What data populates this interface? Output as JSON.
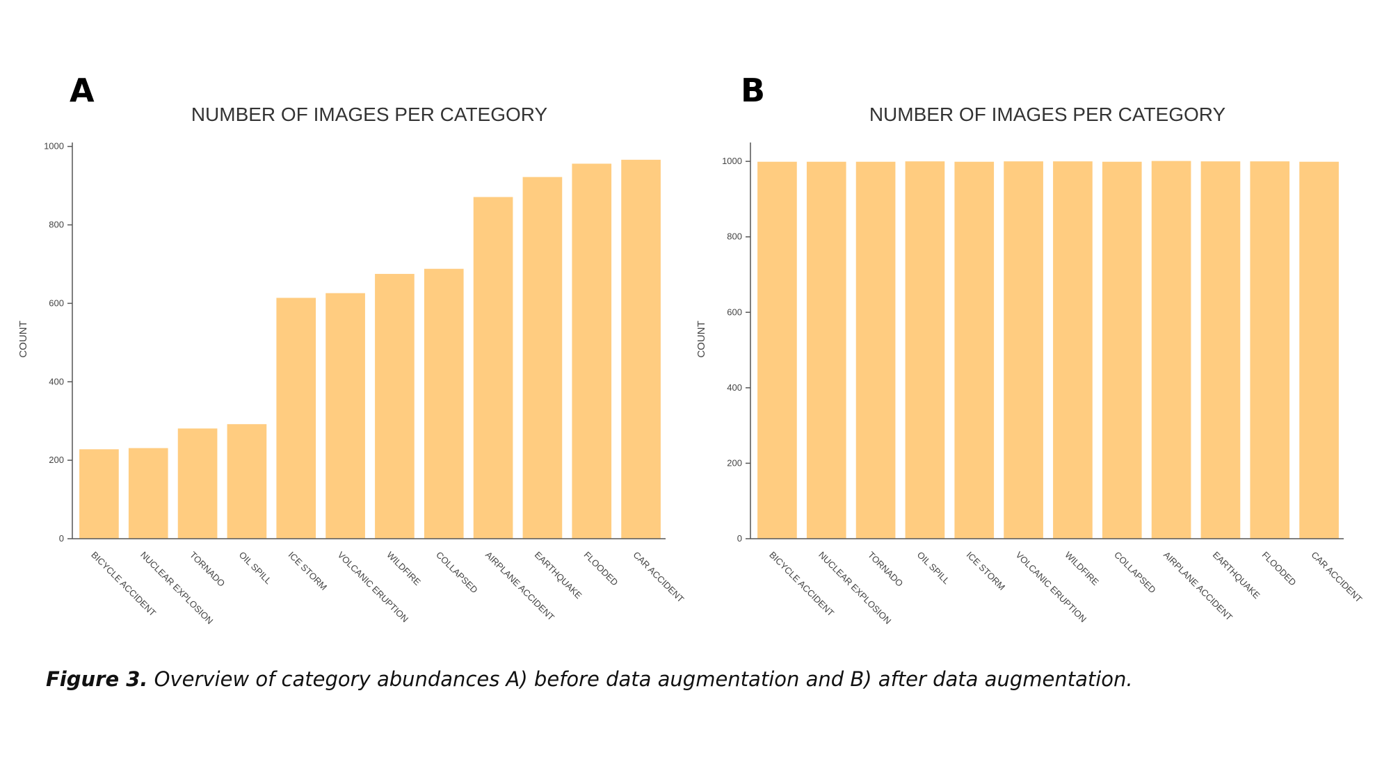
{
  "caption": {
    "label": "Figure 3.",
    "text": " Overview of category abundances A) before data augmentation and B) after data augmentation."
  },
  "chart_data": [
    {
      "type": "bar",
      "panel": "A",
      "title": "NUMBER OF IMAGES PER CATEGORY",
      "xlabel": "",
      "ylabel": "COUNT",
      "ylim": [
        0,
        1010
      ],
      "yticks": [
        0,
        200,
        400,
        600,
        800,
        1000
      ],
      "grid": false,
      "categories": [
        "BICYCLE ACCIDENT",
        "NUCLEAR EXPLOSION",
        "TORNADO",
        "OIL SPILL",
        "ICE STORM",
        "VOLCANIC ERUPTION",
        "WILDFIRE",
        "COLLAPSED",
        "AIRPLANE ACCIDENT",
        "EARTHQUAKE",
        "FLOODED",
        "CAR ACCIDENT"
      ],
      "values": [
        228,
        231,
        281,
        292,
        614,
        626,
        675,
        688,
        871,
        922,
        956,
        966
      ],
      "color": "#ffcc80"
    },
    {
      "type": "bar",
      "panel": "B",
      "title": "NUMBER OF IMAGES PER CATEGORY",
      "xlabel": "",
      "ylabel": "COUNT",
      "ylim": [
        0,
        1050
      ],
      "yticks": [
        0,
        200,
        400,
        600,
        800,
        1000
      ],
      "grid": false,
      "categories": [
        "BICYCLE ACCIDENT",
        "NUCLEAR EXPLOSION",
        "TORNADO",
        "OIL SPILL",
        "ICE STORM",
        "VOLCANIC ERUPTION",
        "WILDFIRE",
        "COLLAPSED",
        "AIRPLANE ACCIDENT",
        "EARTHQUAKE",
        "FLOODED",
        "CAR ACCIDENT"
      ],
      "values": [
        999,
        999,
        999,
        1000,
        999,
        1000,
        1000,
        999,
        1001,
        1000,
        1000,
        999
      ],
      "color": "#ffcc80"
    }
  ]
}
